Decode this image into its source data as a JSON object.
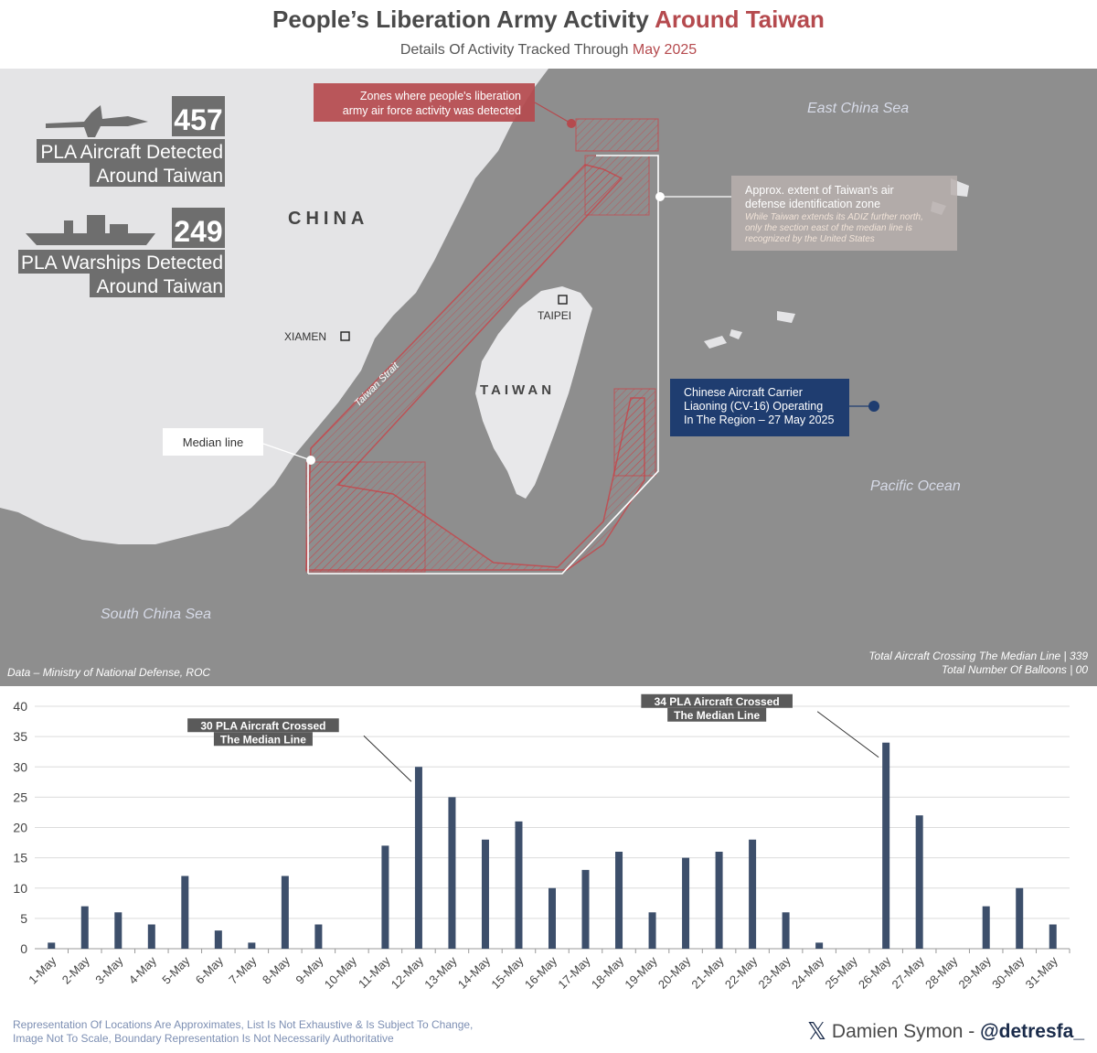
{
  "header": {
    "title_main": "People’s Liberation Army Activity ",
    "title_accent": "Around Taiwan",
    "subtitle_main": "Details Of Activity Tracked Through ",
    "subtitle_accent": "May 2025"
  },
  "map": {
    "labels": {
      "china": "CHINA",
      "taiwan": "TAIWAN",
      "taipei": "TAIPEI",
      "xiamen": "XIAMEN",
      "east_china_sea": "East China Sea",
      "south_china_sea": "South China Sea",
      "pacific_ocean": "Pacific Ocean",
      "taiwan_strait": "Taiwan Strait"
    },
    "stats": {
      "aircraft_count": "457",
      "aircraft_line1": "PLA Aircraft Detected",
      "aircraft_line2": "Around Taiwan",
      "warship_count": "249",
      "warship_line1": "PLA Warships Detected",
      "warship_line2": "Around Taiwan"
    },
    "callouts": {
      "zones_line1": "Zones where people's liberation",
      "zones_line2": "army air force activity was detected",
      "adiz_line1": "Approx. extent of Taiwan's air",
      "adiz_line2": "defense identification zone",
      "adiz_note1": "While Taiwan extends its ADIZ further north,",
      "adiz_note2": "only the section east of the median line is",
      "adiz_note3": "recognized by the United States",
      "median_line": "Median line",
      "carrier_line1": "Chinese Aircraft Carrier",
      "carrier_line2": "Liaoning (CV-16) Operating",
      "carrier_line3": "In The Region – 27 May 2025"
    },
    "source": "Data – Ministry of National Defense, ROC",
    "total_median": "Total Aircraft Crossing The Median Line | 339",
    "total_balloons": "Total Number Of Balloons | 00"
  },
  "chart_data": {
    "type": "bar",
    "categories": [
      "1-May",
      "2-May",
      "3-May",
      "4-May",
      "5-May",
      "6-May",
      "7-May",
      "8-May",
      "9-May",
      "10-May",
      "11-May",
      "12-May",
      "13-May",
      "14-May",
      "15-May",
      "16-May",
      "17-May",
      "18-May",
      "19-May",
      "20-May",
      "21-May",
      "22-May",
      "23-May",
      "24-May",
      "25-May",
      "26-May",
      "27-May",
      "28-May",
      "29-May",
      "30-May",
      "31-May"
    ],
    "values": [
      1,
      7,
      6,
      4,
      12,
      3,
      1,
      12,
      4,
      0,
      17,
      30,
      25,
      18,
      21,
      10,
      13,
      16,
      6,
      15,
      16,
      18,
      6,
      1,
      0,
      34,
      22,
      0,
      7,
      10,
      4
    ],
    "ylim": [
      0,
      40
    ],
    "yticks": [
      0,
      5,
      10,
      15,
      20,
      25,
      30,
      35,
      40
    ],
    "grid": true,
    "bar_color": "#3d4f6b",
    "annotations": [
      {
        "line1": "30 PLA Aircraft Crossed",
        "line2": "The Median Line",
        "category": "12-May",
        "value": 30
      },
      {
        "line1": "34 PLA Aircraft Crossed",
        "line2": "The Median Line",
        "category": "26-May",
        "value": 34
      }
    ]
  },
  "footer": {
    "disclaimer_line1": "Representation Of Locations Are Approximates, List Is Not Exhaustive & Is Subject To Change,",
    "disclaimer_line2": "Image Not To Scale, Boundary Representation Is Not Necessarily Authoritative",
    "credit_name": "Damien Symon - ",
    "credit_handle": "@detresfa_",
    "x_logo": "𝕏"
  },
  "colors": {
    "accent_red": "#b54a4e",
    "navy": "#1f3d70",
    "bar": "#3d4f6b"
  }
}
